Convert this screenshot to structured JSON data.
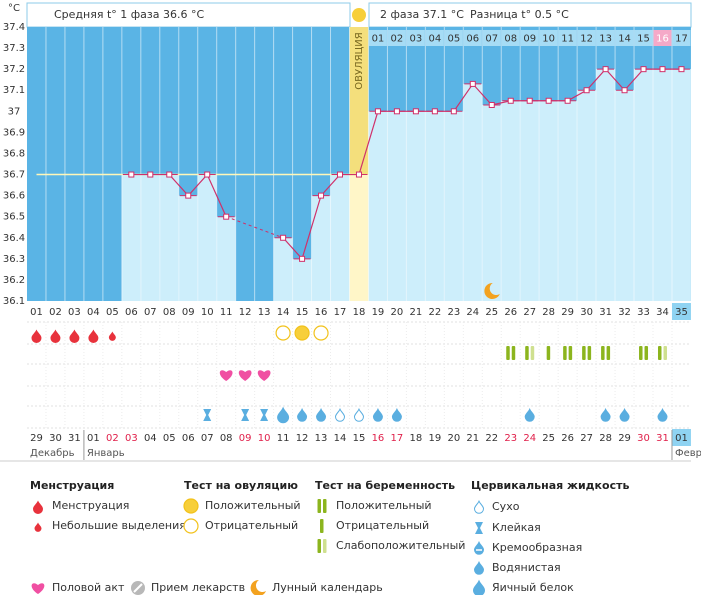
{
  "chart_data": {
    "type": "line",
    "phase1_text": "Средняя t° 1 фаза 36.6 °C",
    "phase2_text": "2 фаза 37.1 °C",
    "difference_text": "Разница t° 0.5 °C",
    "y_unit": "°C",
    "ovulation_label": "ОВУЛЯЦИЯ",
    "ovulation_day": "18",
    "current_day": "35",
    "phase2_highlight": "16",
    "categories": [
      "01",
      "02",
      "03",
      "04",
      "05",
      "06",
      "07",
      "08",
      "09",
      "10",
      "11",
      "12",
      "13",
      "14",
      "15",
      "16",
      "17",
      "18",
      "19",
      "20",
      "21",
      "22",
      "23",
      "24",
      "25",
      "26",
      "27",
      "28",
      "29",
      "30",
      "31",
      "32",
      "33",
      "34",
      "35"
    ],
    "phase2_days": [
      null,
      null,
      null,
      null,
      null,
      null,
      null,
      null,
      null,
      null,
      null,
      null,
      null,
      null,
      null,
      null,
      null,
      null,
      "01",
      "02",
      "03",
      "04",
      "05",
      "06",
      "07",
      "08",
      "09",
      "10",
      "11",
      "12",
      "13",
      "14",
      "15",
      "16",
      "17"
    ],
    "values": [
      null,
      null,
      null,
      null,
      null,
      36.7,
      36.7,
      36.7,
      36.6,
      36.7,
      36.5,
      null,
      null,
      36.4,
      36.3,
      36.6,
      36.7,
      36.7,
      37.0,
      37.0,
      37.0,
      37.0,
      37.0,
      37.13,
      37.03,
      37.05,
      37.05,
      37.05,
      37.05,
      37.1,
      37.2,
      37.1,
      37.2,
      37.2,
      37.2
    ],
    "color": "#d0306a",
    "coverline": 36.7,
    "ylim": [
      36.1,
      37.4
    ],
    "yticks": [
      36.1,
      36.2,
      36.3,
      36.4,
      36.5,
      36.6,
      36.7,
      36.8,
      36.9,
      37,
      37.1,
      37.2,
      37.3,
      37.4
    ],
    "grid": false,
    "dates": [
      "29",
      "30",
      "31",
      "01",
      "02",
      "03",
      "04",
      "05",
      "06",
      "07",
      "08",
      "09",
      "10",
      "11",
      "12",
      "13",
      "14",
      "15",
      "16",
      "17",
      "18",
      "19",
      "20",
      "21",
      "22",
      "23",
      "24",
      "25",
      "26",
      "27",
      "28",
      "29",
      "30",
      "31",
      "01"
    ],
    "dates_red": [
      false,
      false,
      false,
      false,
      true,
      true,
      false,
      false,
      false,
      false,
      false,
      true,
      true,
      false,
      false,
      false,
      false,
      false,
      true,
      true,
      false,
      false,
      false,
      false,
      false,
      true,
      true,
      false,
      false,
      false,
      false,
      false,
      true,
      true,
      false
    ],
    "months": [
      "Декабрь",
      "Январь",
      "Февр"
    ],
    "menstruation": [
      0,
      0,
      0,
      0,
      1,
      null,
      null,
      null,
      null,
      null,
      null,
      null,
      null,
      null,
      null,
      null,
      null,
      null,
      null,
      null,
      null,
      null,
      null,
      null,
      null,
      null,
      null,
      null,
      null,
      null,
      null,
      null,
      null,
      null,
      null
    ],
    "ovulation_test": [
      null,
      null,
      null,
      null,
      null,
      null,
      null,
      null,
      null,
      null,
      null,
      null,
      null,
      1,
      0,
      1,
      null,
      null,
      null,
      null,
      null,
      null,
      null,
      null,
      null,
      null,
      null,
      null,
      null,
      null,
      null,
      null,
      null,
      null,
      null
    ],
    "pregnancy_test": [
      null,
      null,
      null,
      null,
      null,
      null,
      null,
      null,
      null,
      null,
      null,
      null,
      null,
      null,
      null,
      null,
      null,
      null,
      null,
      null,
      null,
      null,
      null,
      null,
      null,
      0,
      2,
      1,
      0,
      0,
      0,
      null,
      0,
      2,
      null
    ],
    "cervical_fluid": [
      null,
      null,
      null,
      null,
      null,
      null,
      null,
      null,
      null,
      1,
      null,
      1,
      1,
      4,
      3,
      3,
      0,
      0,
      3,
      3,
      null,
      null,
      null,
      null,
      null,
      null,
      3,
      null,
      null,
      null,
      3,
      3,
      null,
      3,
      null
    ],
    "other": [
      null,
      null,
      null,
      null,
      null,
      null,
      null,
      null,
      null,
      null,
      0,
      0,
      0,
      null,
      null,
      null,
      null,
      null,
      null,
      null,
      null,
      null,
      null,
      null,
      2,
      null,
      null,
      null,
      null,
      null,
      null,
      null,
      null,
      null,
      null
    ]
  },
  "legend": {
    "menstruation": {
      "title": "Менструация",
      "items": [
        "Менструация",
        "Небольшие выделения"
      ]
    },
    "ovulation_test": {
      "title": "Тест на овуляцию",
      "items": [
        "Положительный",
        "Отрицательный"
      ]
    },
    "pregnancy_test": {
      "title": "Тест на беременность",
      "items": [
        "Положительный",
        "Отрицательный",
        "Слабоположительный"
      ]
    },
    "cervical_fluid": {
      "title": "Цервикальная жидкость",
      "items": [
        "Сухо",
        "Клейкая",
        "Кремообразная",
        "Водянистая",
        "Яичный белок"
      ]
    },
    "other": [
      "Половой акт",
      "Прием лекарств",
      "Лунный календарь"
    ]
  }
}
